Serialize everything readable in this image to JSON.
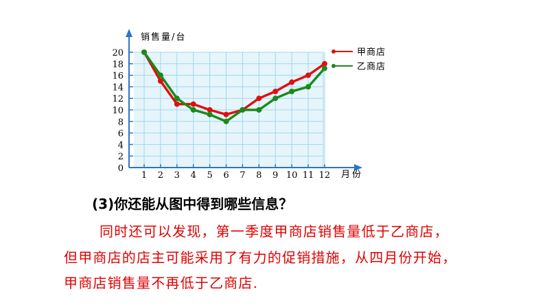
{
  "chart_data": {
    "type": "line",
    "ylabel": "销售量/台",
    "xlabel": "月份",
    "x": [
      1,
      2,
      3,
      4,
      5,
      6,
      7,
      8,
      9,
      10,
      11,
      12
    ],
    "ylim": [
      0,
      20
    ],
    "yticks": [
      0,
      2,
      4,
      6,
      8,
      10,
      12,
      14,
      16,
      18,
      20
    ],
    "grid": true,
    "legend_position": "right",
    "series": [
      {
        "name": "甲商店",
        "color": "#e01010",
        "values": [
          20,
          15,
          11,
          11,
          10,
          9.2,
          10,
          12,
          13.2,
          14.8,
          16,
          18
        ]
      },
      {
        "name": "乙商店",
        "color": "#1a8a1a",
        "values": [
          20,
          16,
          12,
          10,
          9.2,
          8,
          10,
          10,
          12,
          13.2,
          14,
          17.2
        ]
      }
    ]
  },
  "text": {
    "question": "(3)你还能从图中得到哪些信息？",
    "line1": "同时还可以发现，第一季度甲商店销售量低于乙商店，",
    "line2": "但甲商店的店主可能采用了有力的促销措施，从四月份开始，",
    "line3": "甲商店销售量不再低于乙商店."
  },
  "colors": {
    "plot_bg": "#e6f5fb",
    "grid": "#9fd6ec",
    "axis": "#2b74c9",
    "body_text": "#e00000"
  }
}
